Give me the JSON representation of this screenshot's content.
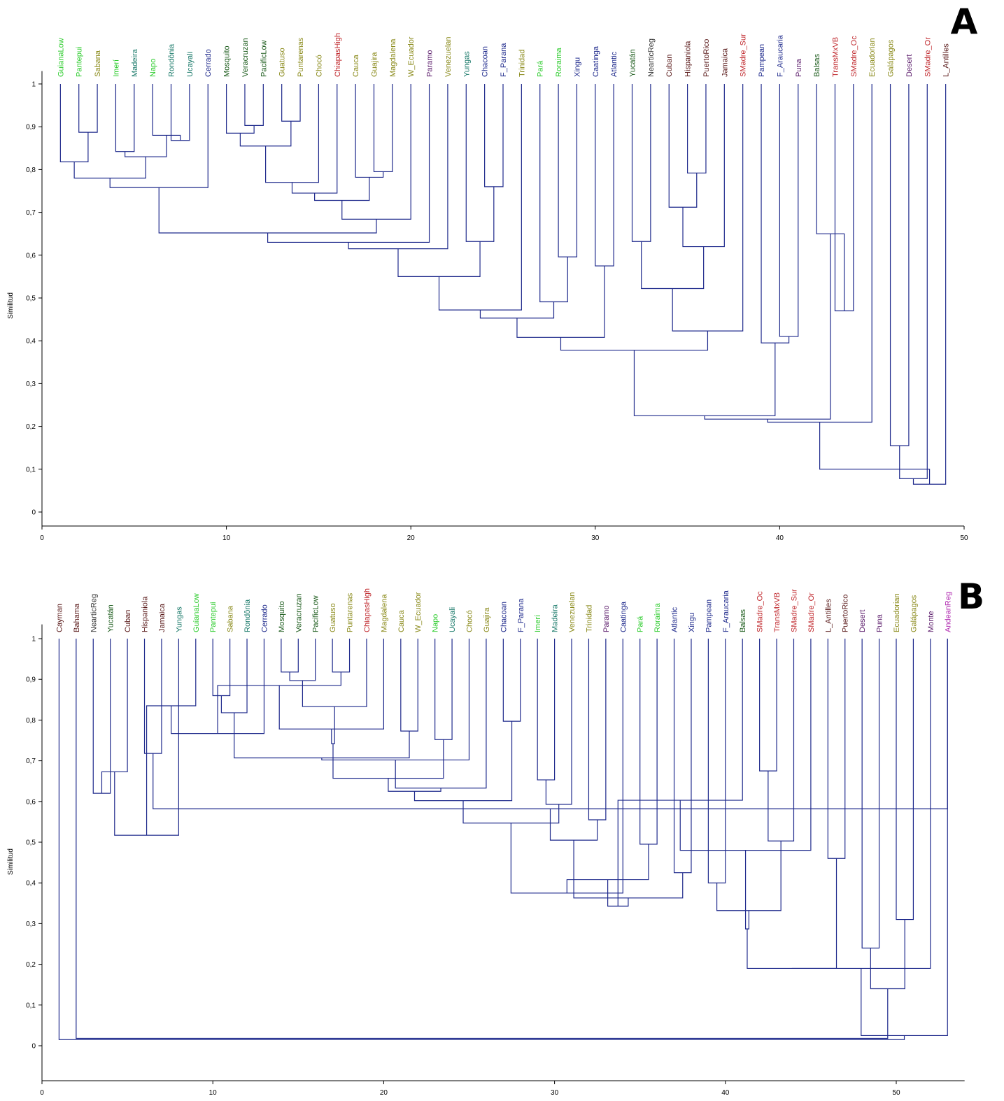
{
  "chart_data": [
    {
      "type": "dendrogram",
      "panel_label": "A",
      "ylabel": "Similitud",
      "ylim": [
        -0.03,
        1.03
      ],
      "xlim": [
        0,
        50
      ],
      "xticks": [
        0,
        10,
        20,
        30,
        40,
        50
      ],
      "yticks": [
        0,
        0.1,
        0.2,
        0.3,
        0.4,
        0.5,
        0.6,
        0.7,
        0.8,
        0.9,
        1
      ],
      "ytick_labels": [
        "0",
        "0,1",
        "0,2",
        "0,3",
        "0,4",
        "0,5",
        "0,6",
        "0,7",
        "0,8",
        "0,9",
        "1"
      ],
      "leaves": [
        {
          "name": "GuianaLow",
          "color": "#2ecc2e"
        },
        {
          "name": "Pantepui",
          "color": "#2ecc2e"
        },
        {
          "name": "Sabana",
          "color": "#8a8a1a"
        },
        {
          "name": "Imerí",
          "color": "#2ecc2e"
        },
        {
          "name": "Madeira",
          "color": "#1a7a6a"
        },
        {
          "name": "Napo",
          "color": "#2ecc2e"
        },
        {
          "name": "Rondônia",
          "color": "#1a7a6a"
        },
        {
          "name": "Ucayali",
          "color": "#1a7a6a"
        },
        {
          "name": "Cerrado",
          "color": "#1f2a8c"
        },
        {
          "name": "Mosquito",
          "color": "#1a5a1a"
        },
        {
          "name": "Veracruzan",
          "color": "#1a5a1a"
        },
        {
          "name": "PacificLow",
          "color": "#1a5a1a"
        },
        {
          "name": "Guatuso",
          "color": "#8a8a1a"
        },
        {
          "name": "Puntarenas",
          "color": "#8a8a1a"
        },
        {
          "name": "Chocó",
          "color": "#8a8a1a"
        },
        {
          "name": "ChiapasHigh",
          "color": "#c0282d"
        },
        {
          "name": "Cauca",
          "color": "#8a8a1a"
        },
        {
          "name": "Guajira",
          "color": "#8a8a1a"
        },
        {
          "name": "Magdalena",
          "color": "#8a8a1a"
        },
        {
          "name": "W_Ecuador",
          "color": "#8a8a1a"
        },
        {
          "name": "Paramo",
          "color": "#5a1a6a"
        },
        {
          "name": "Venezuelan",
          "color": "#8a8a1a"
        },
        {
          "name": "Yungas",
          "color": "#1a7a6a"
        },
        {
          "name": "Chacoan",
          "color": "#1f2a8c"
        },
        {
          "name": "F_Parana",
          "color": "#1f2a8c"
        },
        {
          "name": "Trinidad",
          "color": "#8a8a1a"
        },
        {
          "name": "Pará",
          "color": "#2ecc2e"
        },
        {
          "name": "Roraima",
          "color": "#2ecc2e"
        },
        {
          "name": "Xingu",
          "color": "#1f2a8c"
        },
        {
          "name": "Caatinga",
          "color": "#1f2a8c"
        },
        {
          "name": "Atlantic",
          "color": "#1f2a8c"
        },
        {
          "name": "Yucatán",
          "color": "#1a5a1a"
        },
        {
          "name": "NearticReg",
          "color": "#333333"
        },
        {
          "name": "Cuban",
          "color": "#5a1a1a"
        },
        {
          "name": "Hispaniola",
          "color": "#5a1a1a"
        },
        {
          "name": "PuertoRico",
          "color": "#5a1a1a"
        },
        {
          "name": "Jamaica",
          "color": "#5a1a1a"
        },
        {
          "name": "SMadre_Sur",
          "color": "#c0282d"
        },
        {
          "name": "Pampean",
          "color": "#1f2a8c"
        },
        {
          "name": "F_Araucaria",
          "color": "#1f2a8c"
        },
        {
          "name": "Puna",
          "color": "#5a1a6a"
        },
        {
          "name": "Balsas",
          "color": "#1a5a1a"
        },
        {
          "name": "TransMxVB",
          "color": "#c0282d"
        },
        {
          "name": "SMadre_Oc",
          "color": "#c0282d"
        },
        {
          "name": "Ecuadorian",
          "color": "#8a8a1a"
        },
        {
          "name": "Galápagos",
          "color": "#8a8a1a"
        },
        {
          "name": "Desert",
          "color": "#5a1a6a"
        },
        {
          "name": "SMadre_Or",
          "color": "#c0282d"
        },
        {
          "name": "L_Antilles",
          "color": "#5a1a1a"
        }
      ],
      "merges": [
        [
          2,
          3,
          0.887
        ],
        [
          1,
          50,
          0.818
        ],
        [
          11,
          12,
          0.903
        ],
        [
          10,
          52,
          0.885
        ],
        [
          13,
          14,
          0.913
        ],
        [
          53,
          54,
          0.855
        ],
        [
          4,
          5,
          0.842
        ],
        [
          7,
          8,
          0.868
        ],
        [
          6,
          57,
          0.88
        ],
        [
          56,
          58,
          0.83
        ],
        [
          51,
          59,
          0.78
        ],
        [
          18,
          19,
          0.795
        ],
        [
          17,
          61,
          0.782
        ],
        [
          55,
          15,
          0.77
        ],
        [
          63,
          16,
          0.745
        ],
        [
          64,
          62,
          0.728
        ],
        [
          65,
          20,
          0.684
        ],
        [
          60,
          9,
          0.758
        ],
        [
          67,
          66,
          0.652
        ],
        [
          68,
          21,
          0.63
        ],
        [
          69,
          22,
          0.615
        ],
        [
          24,
          25,
          0.76
        ],
        [
          23,
          71,
          0.632
        ],
        [
          70,
          72,
          0.55
        ],
        [
          73,
          26,
          0.472
        ],
        [
          28,
          29,
          0.596
        ],
        [
          27,
          75,
          0.491
        ],
        [
          74,
          76,
          0.453
        ],
        [
          30,
          31,
          0.575
        ],
        [
          77,
          78,
          0.408
        ],
        [
          35,
          36,
          0.792
        ],
        [
          34,
          80,
          0.712
        ],
        [
          81,
          37,
          0.62
        ],
        [
          32,
          33,
          0.632
        ],
        [
          83,
          82,
          0.522
        ],
        [
          84,
          38,
          0.423
        ],
        [
          79,
          85,
          0.378
        ],
        [
          40,
          41,
          0.41
        ],
        [
          39,
          87,
          0.395
        ],
        [
          86,
          88,
          0.225
        ],
        [
          43,
          44,
          0.47
        ],
        [
          42,
          90,
          0.65
        ],
        [
          89,
          91,
          0.217
        ],
        [
          92,
          45,
          0.21
        ],
        [
          46,
          47,
          0.155
        ],
        [
          94,
          48,
          0.078
        ],
        [
          95,
          49,
          0.065
        ],
        [
          93,
          96,
          0.1
        ]
      ]
    },
    {
      "type": "dendrogram",
      "panel_label": "B",
      "ylabel": "Similitud",
      "ylim": [
        -0.075,
        1.035
      ],
      "xlim": [
        0,
        54
      ],
      "xticks": [
        0,
        10,
        20,
        30,
        40,
        50
      ],
      "yticks": [
        0,
        0.1,
        0.2,
        0.3,
        0.4,
        0.5,
        0.6,
        0.7,
        0.8,
        0.9,
        1
      ],
      "ytick_labels": [
        "0",
        "0,1",
        "0,2",
        "0,3",
        "0,4",
        "0,5",
        "0,6",
        "0,7",
        "0,8",
        "0,9",
        "1"
      ],
      "leaves": [
        {
          "name": "Cayman",
          "color": "#5a1a1a"
        },
        {
          "name": "Bahama",
          "color": "#5a1a1a"
        },
        {
          "name": "NearticReg",
          "color": "#333333"
        },
        {
          "name": "Yucatán",
          "color": "#1a5a1a"
        },
        {
          "name": "Cuban",
          "color": "#5a1a1a"
        },
        {
          "name": "Hispaniola",
          "color": "#5a1a1a"
        },
        {
          "name": "Jamaica",
          "color": "#5a1a1a"
        },
        {
          "name": "Yungas",
          "color": "#1a7a6a"
        },
        {
          "name": "GuianaLow",
          "color": "#2ecc2e"
        },
        {
          "name": "Pantepui",
          "color": "#2ecc2e"
        },
        {
          "name": "Sabana",
          "color": "#8a8a1a"
        },
        {
          "name": "Rondônia",
          "color": "#1a7a6a"
        },
        {
          "name": "Cerrado",
          "color": "#1f2a8c"
        },
        {
          "name": "Mosquito",
          "color": "#1a5a1a"
        },
        {
          "name": "Veracruzan",
          "color": "#1a5a1a"
        },
        {
          "name": "PacificLow",
          "color": "#1a5a1a"
        },
        {
          "name": "Guatuso",
          "color": "#8a8a1a"
        },
        {
          "name": "Puntarenas",
          "color": "#8a8a1a"
        },
        {
          "name": "ChiapasHigh",
          "color": "#c0282d"
        },
        {
          "name": "Magdalena",
          "color": "#8a8a1a"
        },
        {
          "name": "Cauca",
          "color": "#8a8a1a"
        },
        {
          "name": "W_Ecuador",
          "color": "#8a8a1a"
        },
        {
          "name": "Napo",
          "color": "#2ecc2e"
        },
        {
          "name": "Ucayali",
          "color": "#1a7a6a"
        },
        {
          "name": "Chocó",
          "color": "#8a8a1a"
        },
        {
          "name": "Guajira",
          "color": "#8a8a1a"
        },
        {
          "name": "Chacoan",
          "color": "#1f2a8c"
        },
        {
          "name": "F_Parana",
          "color": "#1f2a8c"
        },
        {
          "name": "Imerí",
          "color": "#2ecc2e"
        },
        {
          "name": "Madeira",
          "color": "#1a7a6a"
        },
        {
          "name": "Venezuelan",
          "color": "#8a8a1a"
        },
        {
          "name": "Trinidad",
          "color": "#8a8a1a"
        },
        {
          "name": "Paramo",
          "color": "#5a1a6a"
        },
        {
          "name": "Caatinga",
          "color": "#1f2a8c"
        },
        {
          "name": "Pará",
          "color": "#2ecc2e"
        },
        {
          "name": "Roraima",
          "color": "#2ecc2e"
        },
        {
          "name": "Atlantic",
          "color": "#1f2a8c"
        },
        {
          "name": "Xingu",
          "color": "#1f2a8c"
        },
        {
          "name": "Pampean",
          "color": "#1f2a8c"
        },
        {
          "name": "F_Araucaria",
          "color": "#1f2a8c"
        },
        {
          "name": "Balsas",
          "color": "#1a5a1a"
        },
        {
          "name": "SMadre_Oc",
          "color": "#c0282d"
        },
        {
          "name": "TransMxVB",
          "color": "#c0282d"
        },
        {
          "name": "SMadre_Sur",
          "color": "#c0282d"
        },
        {
          "name": "SMadre_Or",
          "color": "#c0282d"
        },
        {
          "name": "L_Antilles",
          "color": "#5a1a1a"
        },
        {
          "name": "PuertoRico",
          "color": "#5a1a1a"
        },
        {
          "name": "Desert",
          "color": "#5a1a6a"
        },
        {
          "name": "Puna",
          "color": "#5a1a6a"
        },
        {
          "name": "Ecuadorian",
          "color": "#8a8a1a"
        },
        {
          "name": "Galápagos",
          "color": "#8a8a1a"
        },
        {
          "name": "Monte",
          "color": "#5a1a6a"
        },
        {
          "name": "AndeanReg",
          "color": "#b02ab0"
        }
      ],
      "merges": [
        [
          3,
          4,
          0.62
        ],
        [
          6,
          7,
          0.718
        ],
        [
          5,
          54,
          0.673
        ],
        [
          53,
          55,
          0.582
        ],
        [
          56,
          8,
          0.517
        ],
        [
          10,
          11,
          0.86
        ],
        [
          9,
          58,
          0.835
        ],
        [
          59,
          12,
          0.818
        ],
        [
          60,
          13,
          0.767
        ],
        [
          14,
          15,
          0.918
        ],
        [
          17,
          18,
          0.918
        ],
        [
          16,
          63,
          0.897
        ],
        [
          62,
          64,
          0.885
        ],
        [
          65,
          19,
          0.833
        ],
        [
          66,
          20,
          0.778
        ],
        [
          21,
          22,
          0.773
        ],
        [
          67,
          68,
          0.742
        ],
        [
          61,
          69,
          0.707
        ],
        [
          23,
          24,
          0.752
        ],
        [
          71,
          25,
          0.702
        ],
        [
          70,
          72,
          0.657
        ],
        [
          73,
          26,
          0.633
        ],
        [
          27,
          28,
          0.797
        ],
        [
          74,
          75,
          0.625
        ],
        [
          29,
          30,
          0.653
        ],
        [
          76,
          77,
          0.602
        ],
        [
          78,
          31,
          0.593
        ],
        [
          32,
          33,
          0.555
        ],
        [
          79,
          80,
          0.547
        ],
        [
          57,
          81,
          0.505
        ],
        [
          82,
          34,
          0.375
        ],
        [
          35,
          36,
          0.495
        ],
        [
          37,
          38,
          0.425
        ],
        [
          84,
          85,
          0.408
        ],
        [
          83,
          86,
          0.363
        ],
        [
          39,
          40,
          0.4
        ],
        [
          87,
          88,
          0.343
        ],
        [
          42,
          43,
          0.675
        ],
        [
          41,
          90,
          0.603
        ],
        [
          91,
          44,
          0.503
        ],
        [
          92,
          45,
          0.48
        ],
        [
          89,
          93,
          0.332
        ],
        [
          46,
          47,
          0.46
        ],
        [
          94,
          95,
          0.287
        ],
        [
          48,
          49,
          0.24
        ],
        [
          96,
          97,
          0.19
        ],
        [
          50,
          51,
          0.31
        ],
        [
          99,
          52,
          0.19
        ],
        [
          98,
          100,
          0.14
        ],
        [
          101,
          53,
          0.025
        ],
        [
          2,
          102,
          0.018
        ],
        [
          1,
          103,
          0.015
        ]
      ]
    }
  ]
}
